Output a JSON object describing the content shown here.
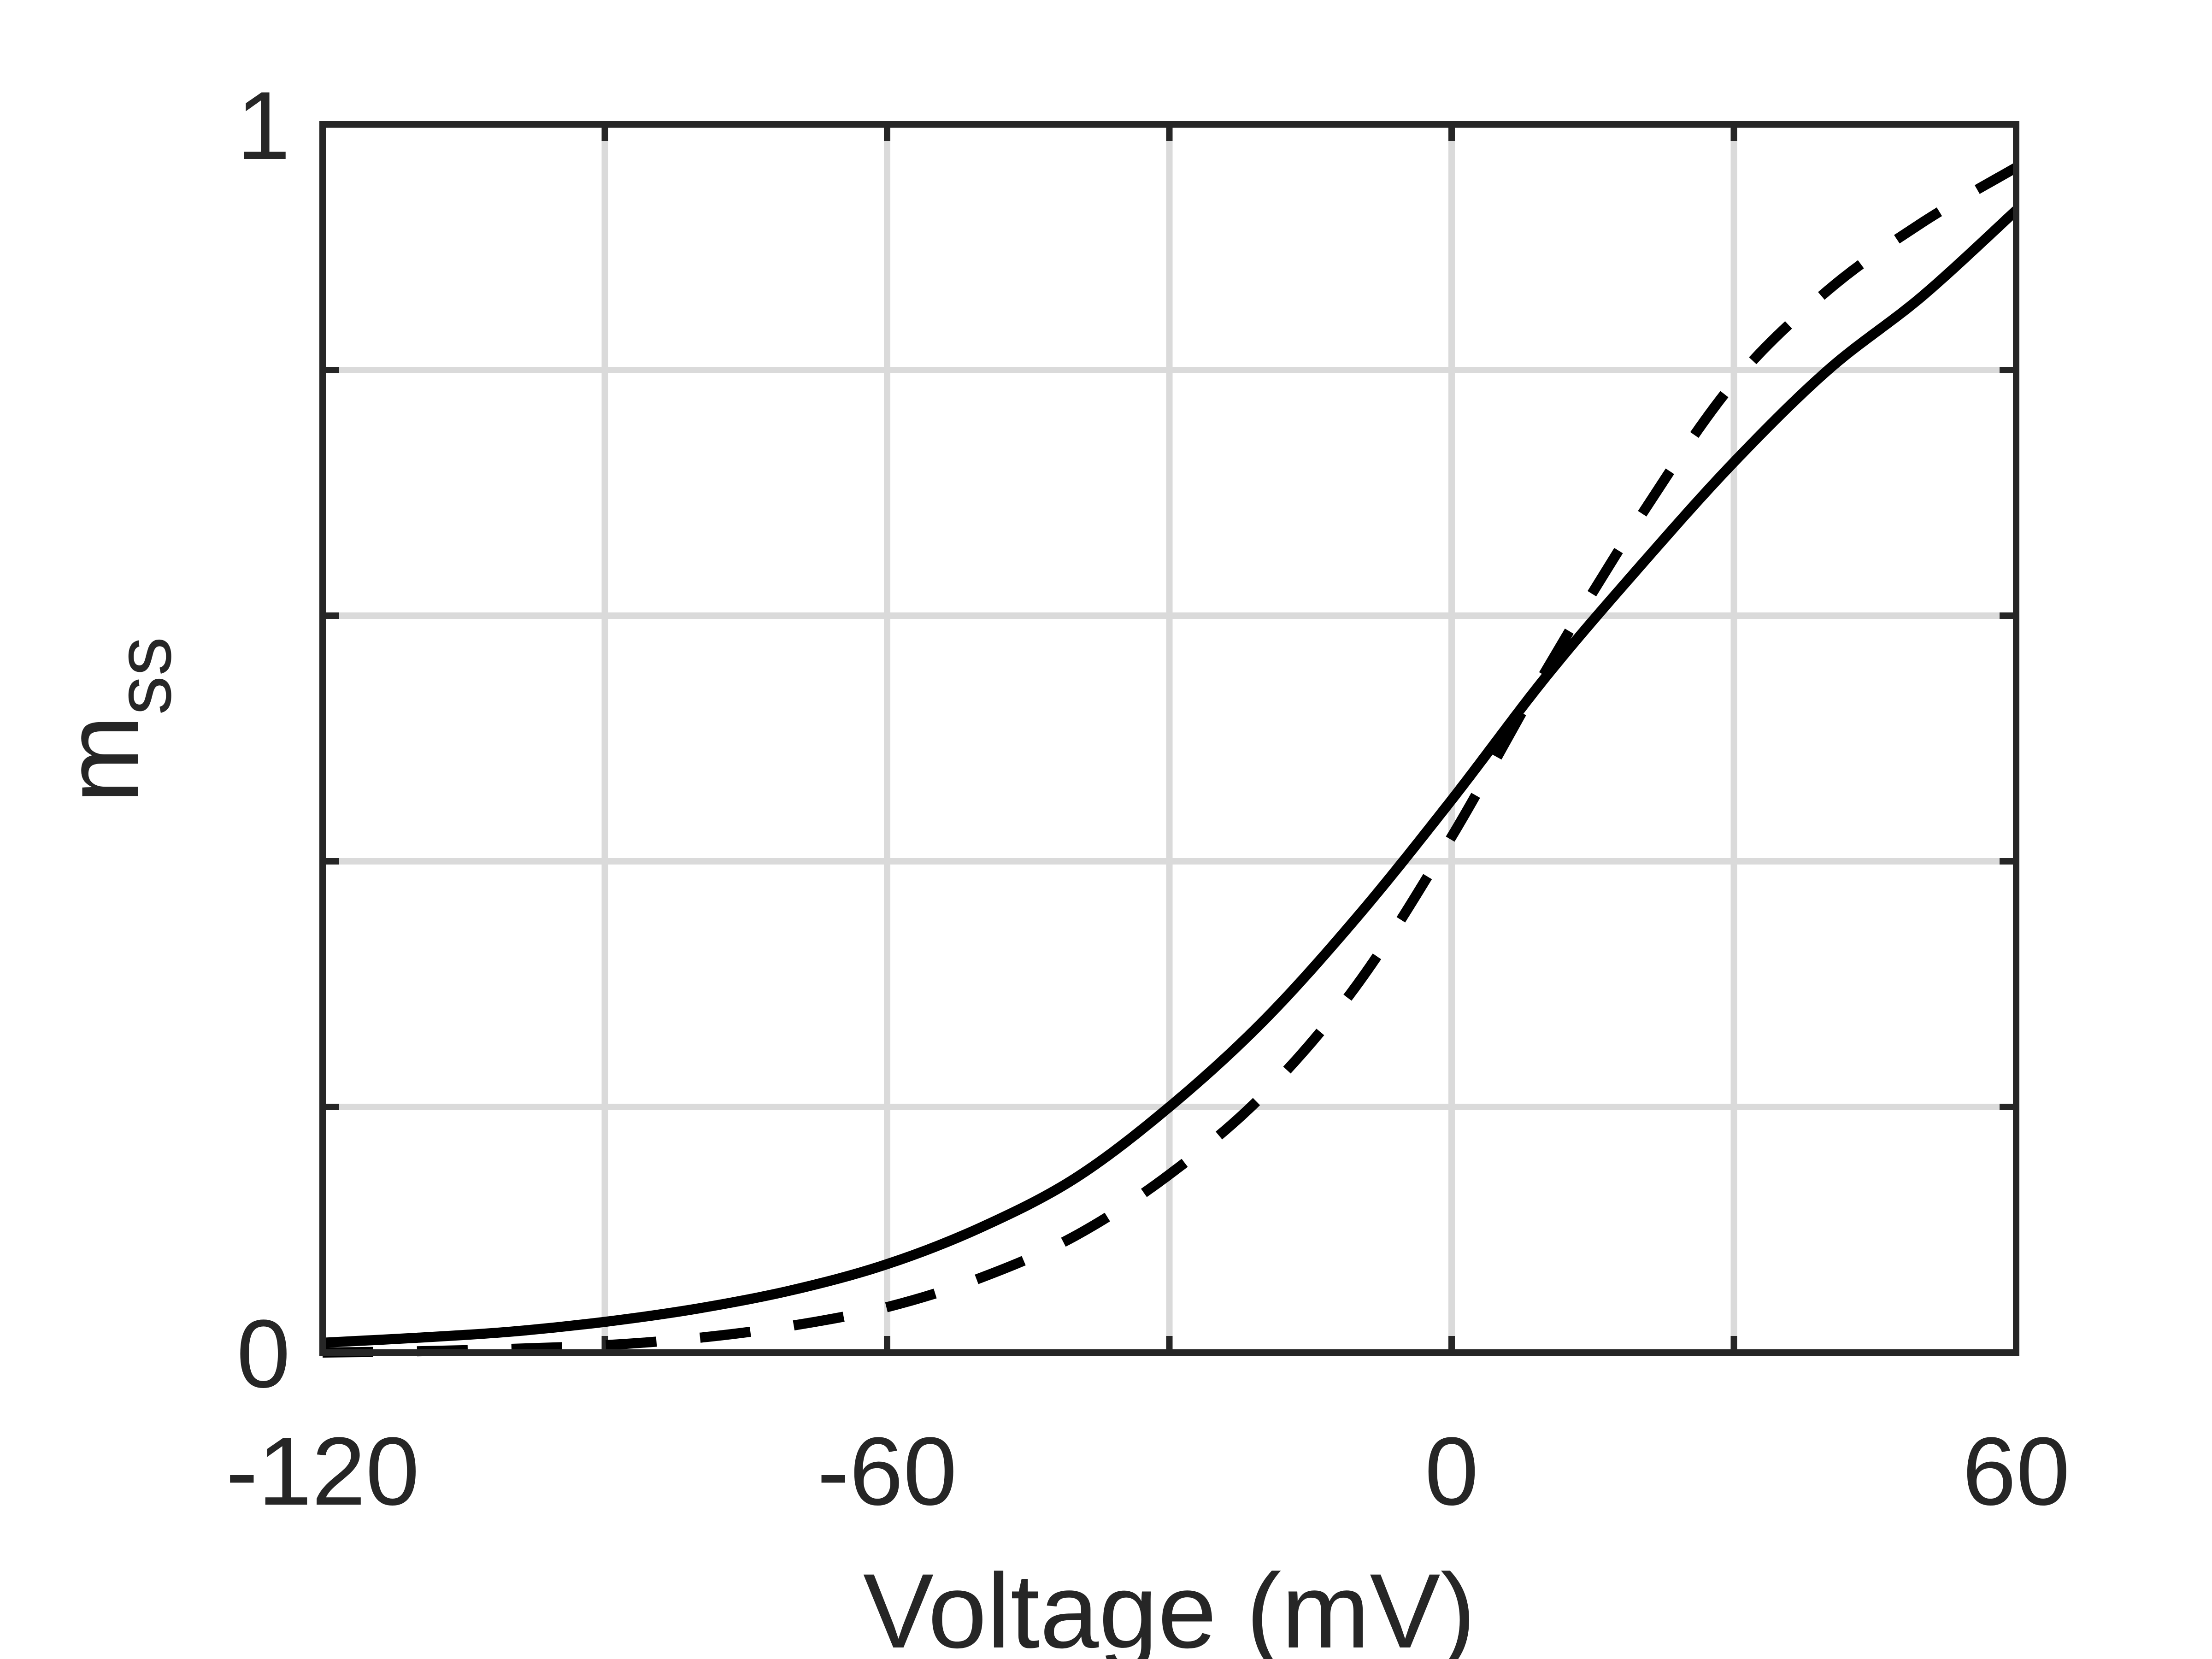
{
  "chart_data": {
    "type": "line",
    "xlabel": "Voltage (mV)",
    "ylabel": {
      "main": "m",
      "subscript": "ss"
    },
    "xlim": [
      -120,
      60
    ],
    "ylim": [
      0,
      1
    ],
    "xticks": [
      -120,
      -90,
      -60,
      -30,
      0,
      30,
      60
    ],
    "xtick_labels": [
      "-120",
      "",
      "-60",
      "",
      "0",
      "",
      "60"
    ],
    "yticks": [
      0,
      0.2,
      0.4,
      0.6,
      0.8,
      1
    ],
    "ytick_labels": [
      "0",
      "",
      "",
      "",
      "",
      "1"
    ],
    "grid": true,
    "series": [
      {
        "style": "solid",
        "x": [
          -120,
          -110,
          -100,
          -90,
          -80,
          -70,
          -60,
          -50,
          -40,
          -30,
          -20,
          -10,
          0,
          10,
          20,
          30,
          40,
          50,
          60
        ],
        "values": [
          0.008,
          0.012,
          0.017,
          0.025,
          0.036,
          0.051,
          0.072,
          0.102,
          0.142,
          0.2,
          0.27,
          0.355,
          0.45,
          0.55,
          0.64,
          0.725,
          0.8,
          0.86,
          0.93
        ]
      },
      {
        "style": "dashed",
        "x": [
          -120,
          -110,
          -100,
          -90,
          -80,
          -70,
          -60,
          -50,
          -40,
          -30,
          -20,
          -10,
          0,
          10,
          20,
          30,
          40,
          50,
          60
        ],
        "values": [
          0.0,
          0.001,
          0.003,
          0.006,
          0.012,
          0.022,
          0.037,
          0.061,
          0.095,
          0.145,
          0.21,
          0.3,
          0.42,
          0.555,
          0.68,
          0.79,
          0.865,
          0.92,
          0.965
        ]
      }
    ]
  }
}
